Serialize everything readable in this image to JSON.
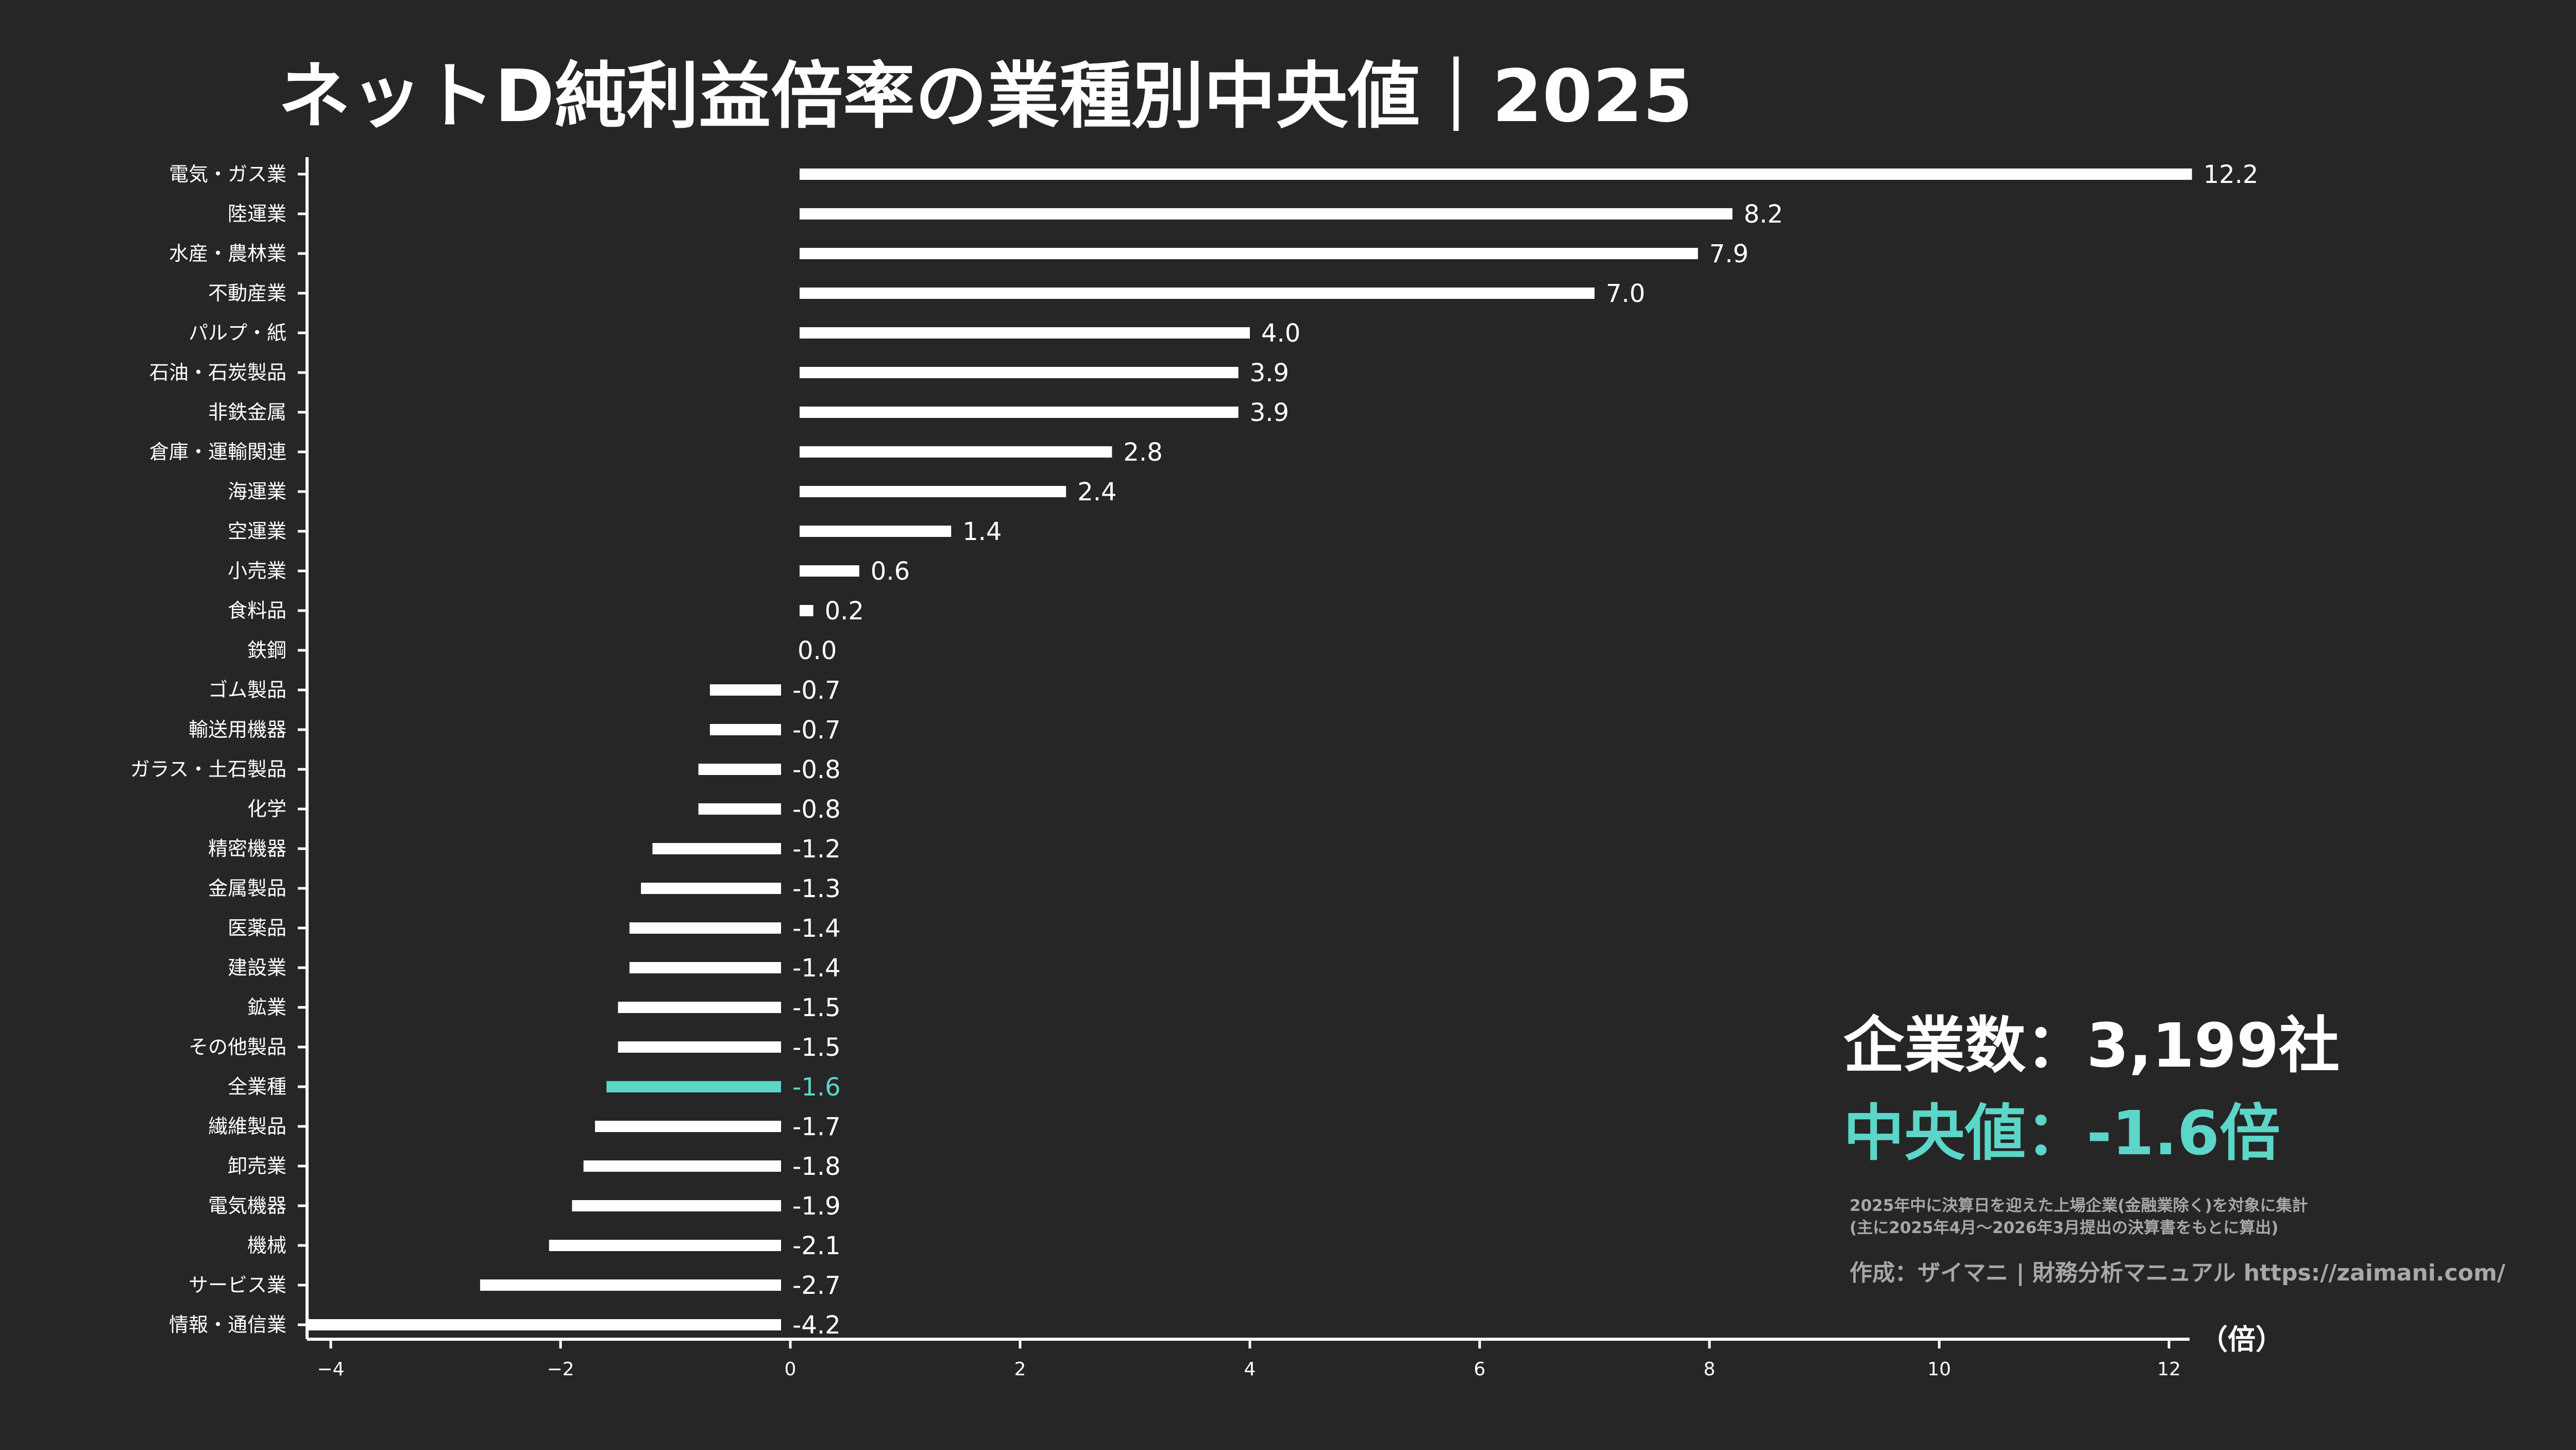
{
  "colors": {
    "background": "#262626",
    "bar": "#ffffff",
    "highlight": "#5cd6c8",
    "note": "#a8a8a8"
  },
  "chart_data": {
    "type": "bar",
    "orientation": "horizontal",
    "title": "ネットD純利益倍率の業種別中央値｜2025",
    "xlabel": "（倍）",
    "xlim": [
      -4.2,
      12.2
    ],
    "xticks": [
      -4,
      -2,
      0,
      2,
      4,
      6,
      8,
      10,
      12
    ],
    "xtick_labels": [
      "−4",
      "−2",
      "0",
      "2",
      "4",
      "6",
      "8",
      "10",
      "12"
    ],
    "grid": false,
    "highlight_category": "全業種",
    "categories": [
      "電気・ガス業",
      "陸運業",
      "水産・農林業",
      "不動産業",
      "パルプ・紙",
      "石油・石炭製品",
      "非鉄金属",
      "倉庫・運輸関連",
      "海運業",
      "空運業",
      "小売業",
      "食料品",
      "鉄鋼",
      "ゴム製品",
      "輸送用機器",
      "ガラス・土石製品",
      "化学",
      "精密機器",
      "金属製品",
      "医薬品",
      "建設業",
      "鉱業",
      "その他製品",
      "全業種",
      "繊維製品",
      "卸売業",
      "電気機器",
      "機械",
      "サービス業",
      "情報・通信業"
    ],
    "values": [
      12.2,
      8.2,
      7.9,
      7.0,
      4.0,
      3.9,
      3.9,
      2.8,
      2.4,
      1.4,
      0.6,
      0.2,
      0.0,
      -0.7,
      -0.7,
      -0.8,
      -0.8,
      -1.2,
      -1.3,
      -1.4,
      -1.4,
      -1.5,
      -1.5,
      -1.6,
      -1.7,
      -1.8,
      -1.9,
      -2.1,
      -2.7,
      -4.2
    ],
    "value_labels": [
      "12.2",
      "8.2",
      "7.9",
      "7.0",
      "4.0",
      "3.9",
      "3.9",
      "2.8",
      "2.4",
      "1.4",
      "0.6",
      "0.2",
      "0.0",
      "-0.7",
      "-0.7",
      "-0.8",
      "-0.8",
      "-1.2",
      "-1.3",
      "-1.4",
      "-1.4",
      "-1.5",
      "-1.5",
      "-1.6",
      "-1.7",
      "-1.8",
      "-1.9",
      "-2.1",
      "-2.7",
      "-4.2"
    ]
  },
  "summary": {
    "companies": "企業数：3,199社",
    "median": "中央値：-1.6倍",
    "note_line1": "2025年中に決算日を迎えた上場企業(金融業除く)を対象に集計",
    "note_line2": "(主に2025年4月〜2026年3月提出の決算書をもとに算出)",
    "credit": "作成：ザイマニ | 財務分析マニュアル https://zaimani.com/"
  }
}
